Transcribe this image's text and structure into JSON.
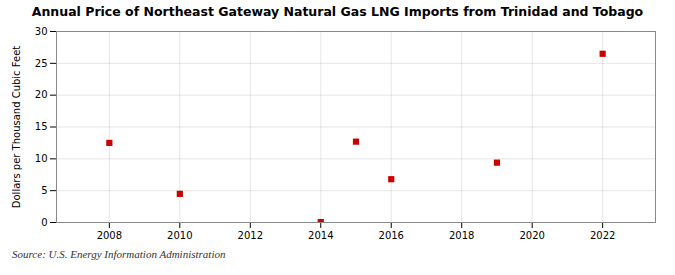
{
  "chart_data": {
    "type": "scatter",
    "title": "Annual Price of Northeast Gateway Natural Gas LNG Imports from Trinidad and Tobago",
    "ylabel": "Dollars per Thousand Cubic Feet",
    "source": "Source: U.S. Energy Information Administration",
    "x": [
      2008,
      2010,
      2014,
      2015,
      2016,
      2019,
      2022
    ],
    "values": [
      12.5,
      4.5,
      0.07,
      12.7,
      6.8,
      9.4,
      26.5
    ],
    "color": "#cc0000",
    "marker": "square",
    "xlim": [
      2006.5,
      2023.5
    ],
    "ylim": [
      0,
      30
    ],
    "xticks": [
      2008,
      2010,
      2012,
      2014,
      2016,
      2018,
      2020,
      2022
    ],
    "yticks": [
      0,
      5,
      10,
      15,
      20,
      25,
      30
    ],
    "grid": true
  }
}
